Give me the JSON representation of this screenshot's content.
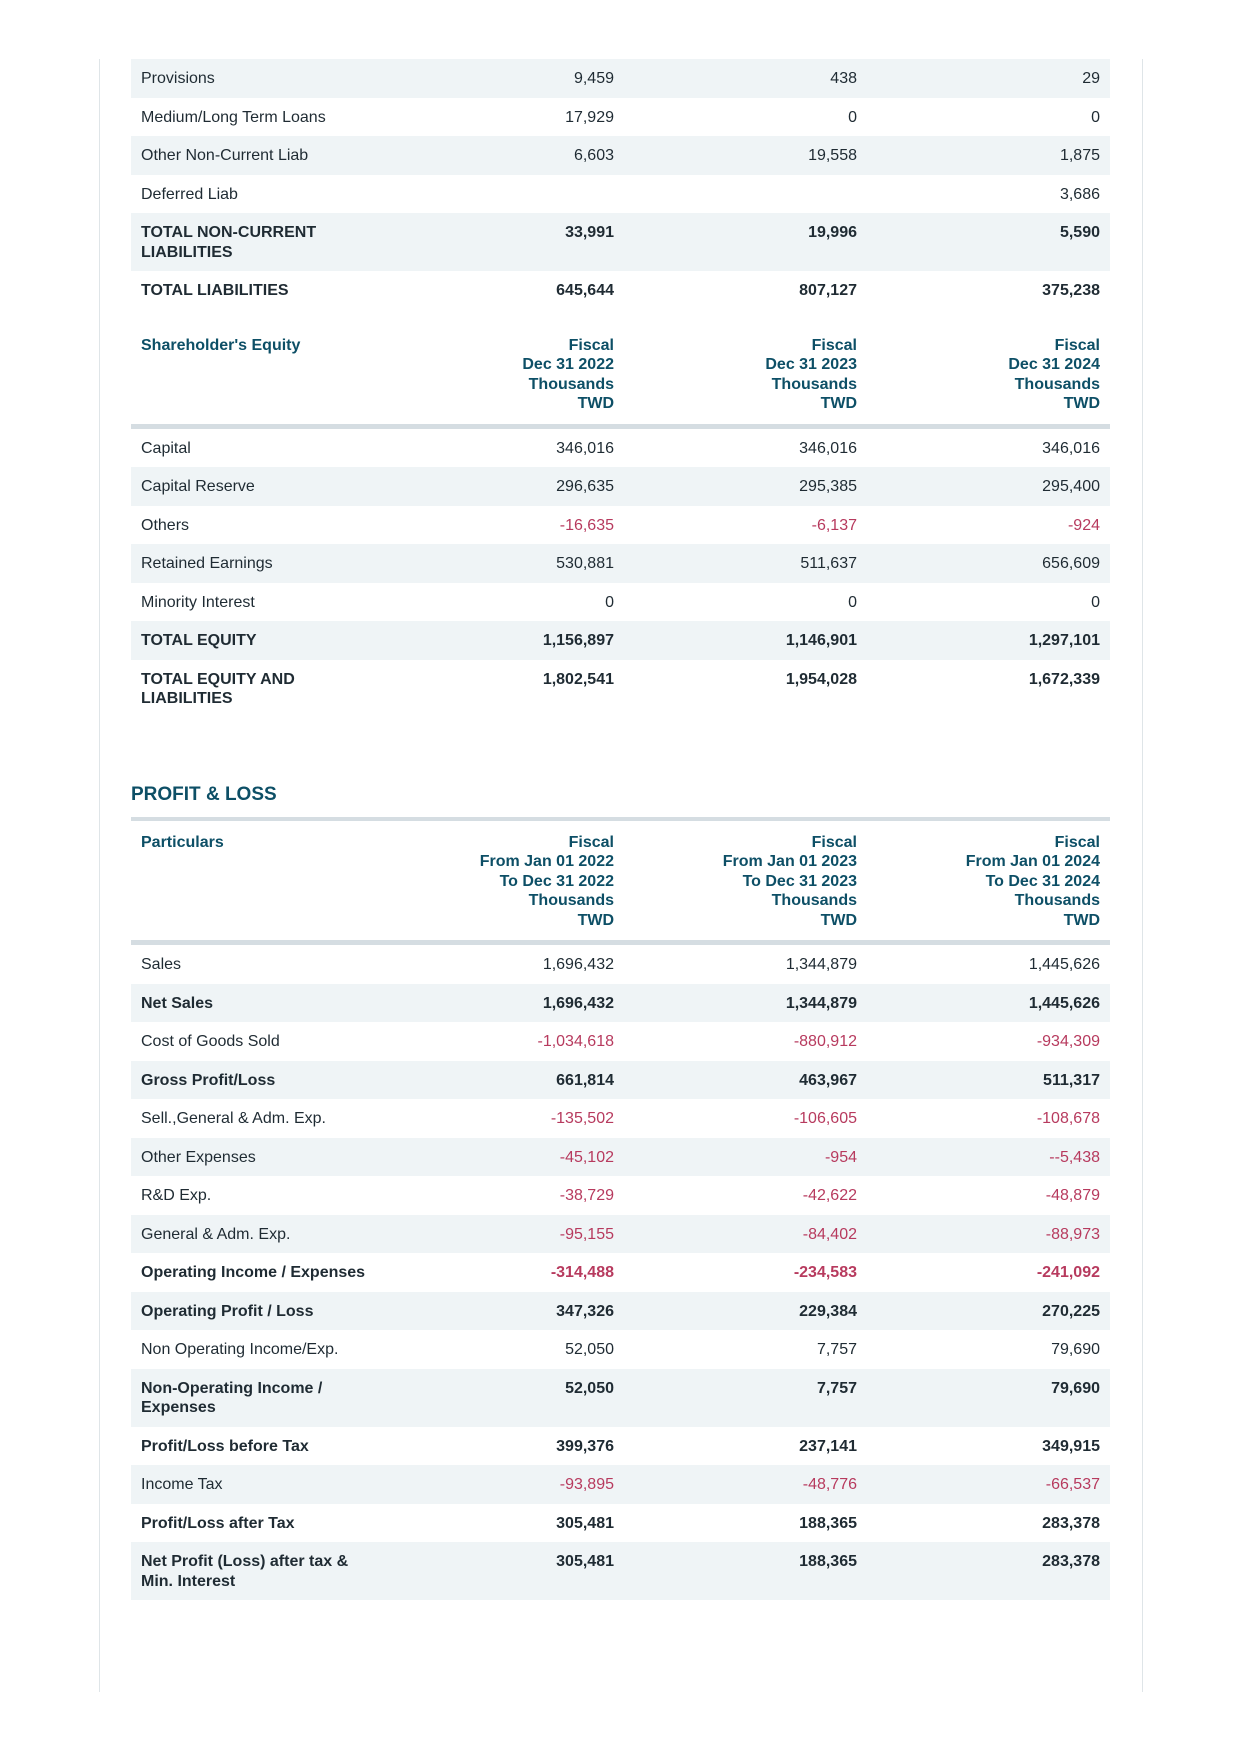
{
  "balance_liabilities_rows": [
    {
      "label": "Provisions",
      "values": [
        "9,459",
        "438",
        "29"
      ],
      "bold": false
    },
    {
      "label": "Medium/Long Term Loans",
      "values": [
        "17,929",
        "0",
        "0"
      ],
      "bold": false
    },
    {
      "label": "Other Non-Current Liab",
      "values": [
        "6,603",
        "19,558",
        "1,875"
      ],
      "bold": false
    },
    {
      "label": "Deferred Liab",
      "values": [
        "",
        "",
        "3,686"
      ],
      "bold": false
    },
    {
      "label": "TOTAL NON-CURRENT LIABILITIES",
      "values": [
        "33,991",
        "19,996",
        "5,590"
      ],
      "bold": true
    },
    {
      "label": "TOTAL LIABILITIES",
      "values": [
        "645,644",
        "807,127",
        "375,238"
      ],
      "bold": true
    }
  ],
  "equity": {
    "header_label": "Shareholder's Equity",
    "columns": [
      "Fiscal\nDec 31 2022\nThousands\nTWD",
      "Fiscal\nDec 31 2023\nThousands\nTWD",
      "Fiscal\nDec 31 2024\nThousands\nTWD"
    ],
    "rows": [
      {
        "label": "Capital",
        "values": [
          "346,016",
          "346,016",
          "346,016"
        ],
        "bold": false
      },
      {
        "label": "Capital Reserve",
        "values": [
          "296,635",
          "295,385",
          "295,400"
        ],
        "bold": false
      },
      {
        "label": "Others",
        "values": [
          "-16,635",
          "-6,137",
          "-924"
        ],
        "bold": false
      },
      {
        "label": "Retained Earnings",
        "values": [
          "530,881",
          "511,637",
          "656,609"
        ],
        "bold": false
      },
      {
        "label": "Minority Interest",
        "values": [
          "0",
          "0",
          "0"
        ],
        "bold": false
      },
      {
        "label": "TOTAL EQUITY",
        "values": [
          "1,156,897",
          "1,146,901",
          "1,297,101"
        ],
        "bold": true
      },
      {
        "label": "TOTAL EQUITY AND LIABILITIES",
        "values": [
          "1,802,541",
          "1,954,028",
          "1,672,339"
        ],
        "bold": true
      }
    ]
  },
  "pl": {
    "title": "PROFIT & LOSS",
    "header_label": "Particulars",
    "columns": [
      "Fiscal\nFrom Jan 01 2022\nTo Dec 31 2022\nThousands\nTWD",
      "Fiscal\nFrom Jan 01 2023\nTo Dec 31 2023\nThousands\nTWD",
      "Fiscal\nFrom Jan 01 2024\nTo Dec 31 2024\nThousands\nTWD"
    ],
    "rows": [
      {
        "label": "Sales",
        "values": [
          "1,696,432",
          "1,344,879",
          "1,445,626"
        ],
        "bold": false
      },
      {
        "label": "Net Sales",
        "values": [
          "1,696,432",
          "1,344,879",
          "1,445,626"
        ],
        "bold": true
      },
      {
        "label": "Cost of Goods Sold",
        "values": [
          "-1,034,618",
          "-880,912",
          "-934,309"
        ],
        "bold": false
      },
      {
        "label": "Gross Profit/Loss",
        "values": [
          "661,814",
          "463,967",
          "511,317"
        ],
        "bold": true
      },
      {
        "label": "Sell.,General & Adm. Exp.",
        "values": [
          "-135,502",
          "-106,605",
          "-108,678"
        ],
        "bold": false
      },
      {
        "label": "Other Expenses",
        "values": [
          "-45,102",
          "-954",
          "--5,438"
        ],
        "bold": false
      },
      {
        "label": "R&D Exp.",
        "values": [
          "-38,729",
          "-42,622",
          "-48,879"
        ],
        "bold": false
      },
      {
        "label": "General & Adm. Exp.",
        "values": [
          "-95,155",
          "-84,402",
          "-88,973"
        ],
        "bold": false
      },
      {
        "label": "Operating Income / Expenses",
        "values": [
          "-314,488",
          "-234,583",
          "-241,092"
        ],
        "bold": true
      },
      {
        "label": "Operating Profit / Loss",
        "values": [
          "347,326",
          "229,384",
          "270,225"
        ],
        "bold": true
      },
      {
        "label": "Non Operating Income/Exp.",
        "values": [
          "52,050",
          "7,757",
          "79,690"
        ],
        "bold": false
      },
      {
        "label": "Non-Operating Income / Expenses",
        "values": [
          "52,050",
          "7,757",
          "79,690"
        ],
        "bold": true
      },
      {
        "label": "Profit/Loss before Tax",
        "values": [
          "399,376",
          "237,141",
          "349,915"
        ],
        "bold": true
      },
      {
        "label": "Income Tax",
        "values": [
          "-93,895",
          "-48,776",
          "-66,537"
        ],
        "bold": false
      },
      {
        "label": "Profit/Loss after Tax",
        "values": [
          "305,481",
          "188,365",
          "283,378"
        ],
        "bold": true
      },
      {
        "label": "Net Profit (Loss) after tax & Min. Interest",
        "values": [
          "305,481",
          "188,365",
          "283,378"
        ],
        "bold": true
      }
    ]
  },
  "colors": {
    "header": "#0d4f66",
    "negative": "#b73a5e",
    "stripe": "#eff4f6"
  }
}
